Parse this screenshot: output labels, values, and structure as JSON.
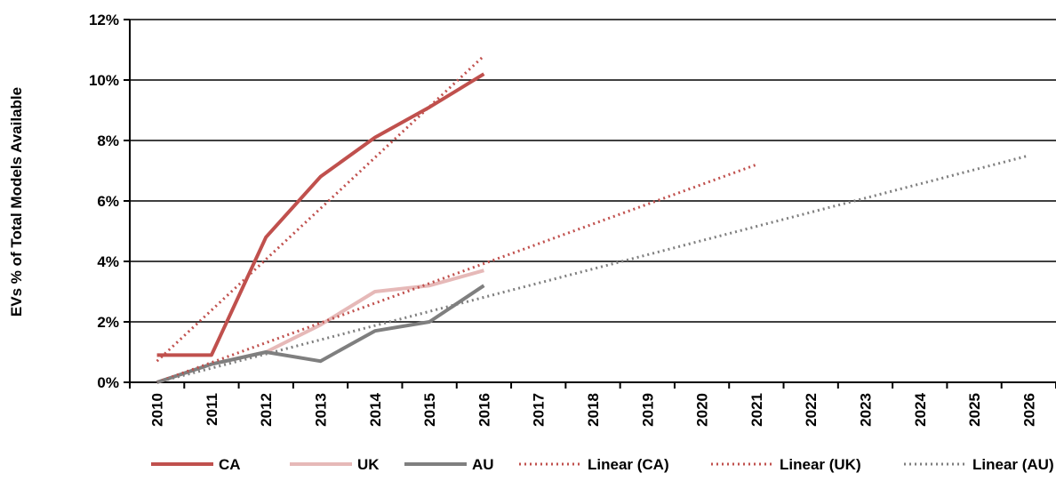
{
  "chart_data": {
    "type": "line",
    "ylabel": "EVs % of Total Models Available",
    "xlabel": "",
    "x": [
      "2010",
      "2011",
      "2012",
      "2013",
      "2014",
      "2015",
      "2016",
      "2017",
      "2018",
      "2019",
      "2020",
      "2021",
      "2022",
      "2023",
      "2024",
      "2025",
      "2026"
    ],
    "ylim": [
      0,
      0.12
    ],
    "yticks": [
      0,
      0.02,
      0.04,
      0.06,
      0.08,
      0.1,
      0.12
    ],
    "ytick_labels": [
      "0%",
      "2%",
      "4%",
      "6%",
      "8%",
      "10%",
      "12%"
    ],
    "grid": "horizontal",
    "legend_position": "bottom",
    "series": [
      {
        "name": "CA",
        "style": "solid",
        "color": "#c0504d",
        "x": [
          "2010",
          "2011",
          "2012",
          "2013",
          "2014",
          "2015",
          "2016"
        ],
        "values": [
          0.009,
          0.009,
          0.048,
          0.068,
          0.081,
          0.091,
          0.102
        ]
      },
      {
        "name": "UK",
        "style": "solid",
        "color": "#e6b9b8",
        "x": [
          "2010",
          "2011",
          "2012",
          "2013",
          "2014",
          "2015",
          "2016"
        ],
        "values": [
          0.0,
          0.006,
          0.01,
          0.019,
          0.03,
          0.032,
          0.037
        ]
      },
      {
        "name": "AU",
        "style": "solid",
        "color": "#7f7f7f",
        "x": [
          "2010",
          "2011",
          "2012",
          "2013",
          "2014",
          "2015",
          "2016"
        ],
        "values": [
          0.0,
          0.006,
          0.01,
          0.007,
          0.017,
          0.02,
          0.032
        ]
      },
      {
        "name": "Linear (CA)",
        "style": "dotted",
        "color": "#c0504d",
        "x": [
          "2010",
          "2016"
        ],
        "values": [
          0.007,
          0.108
        ]
      },
      {
        "name": "Linear (UK)",
        "style": "dotted",
        "color": "#c0504d",
        "x": [
          "2010",
          "2021"
        ],
        "values": [
          0.0,
          0.072
        ]
      },
      {
        "name": "Linear (AU)",
        "style": "dotted",
        "color": "#7f7f7f",
        "x": [
          "2010",
          "2026"
        ],
        "values": [
          0.0,
          0.075
        ]
      }
    ]
  }
}
